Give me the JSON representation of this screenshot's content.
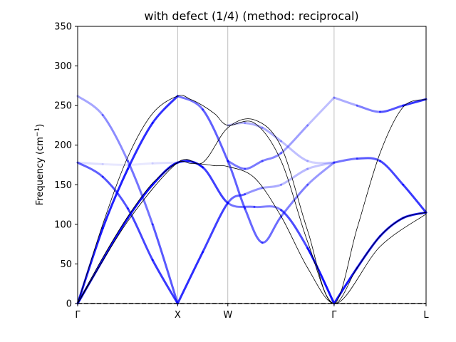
{
  "chart_data": {
    "type": "line",
    "title": "with defect (1/4) (method: reciprocal)",
    "ylabel_text": "Frequency (cm",
    "ylabel_sup": "−1",
    "ylabel_close": ")",
    "xlabel": "",
    "ylim": [
      0,
      350
    ],
    "yticks": [
      0,
      50,
      100,
      150,
      200,
      250,
      300,
      350
    ],
    "xlim": [
      0,
      1
    ],
    "high_symmetry_points": [
      {
        "label": "Γ",
        "x": 0.0
      },
      {
        "label": "X",
        "x": 0.287
      },
      {
        "label": "W",
        "x": 0.431
      },
      {
        "label": "Γ",
        "x": 0.736
      },
      {
        "label": "L",
        "x": 1.0
      }
    ],
    "zero_line": {
      "y": 0,
      "style": "dashed"
    },
    "colors": {
      "unfolded": "#0000ff",
      "reference": "#000000"
    },
    "reference_bands": [
      {
        "name": "",
        "x": [
          0,
          0.072,
          0.144,
          0.215,
          0.287,
          0.323,
          0.359,
          0.395,
          0.431,
          0.507,
          0.584,
          0.66,
          0.736,
          0.802,
          0.868,
          0.934,
          1.0
        ],
        "y": [
          0,
          58,
          110,
          152,
          178,
          177,
          176,
          174,
          173,
          159,
          110,
          45,
          0,
          45,
          85,
          108,
          115
        ]
      },
      {
        "name": "",
        "x": [
          0,
          0.072,
          0.144,
          0.215,
          0.287,
          0.323,
          0.359,
          0.395,
          0.431,
          0.507,
          0.584,
          0.66,
          0.736,
          0.802,
          0.868,
          0.934,
          1.0
        ],
        "y": [
          0,
          100,
          185,
          240,
          262,
          258,
          250,
          239,
          225,
          228,
          180,
          78,
          0,
          95,
          190,
          248,
          258
        ]
      },
      {
        "name": "",
        "x": [
          0,
          0.144,
          0.287,
          0.359,
          0.431,
          0.507,
          0.584,
          0.66,
          0.736,
          0.868,
          1.0
        ],
        "y": [
          0,
          104,
          178,
          178,
          222,
          232,
          198,
          92,
          0,
          72,
          113
        ]
      }
    ],
    "unfolded_bands": [
      {
        "name": "",
        "x": [
          0,
          0.072,
          0.144,
          0.215,
          0.287,
          0.359,
          0.431,
          0.507,
          0.584,
          0.66,
          0.736
        ],
        "y": [
          0,
          55,
          108,
          150,
          178,
          172,
          127,
          122,
          118,
          70,
          0
        ],
        "weight": [
          0.95,
          0.95,
          0.95,
          0.95,
          0.95,
          0.9,
          0.6,
          0.5,
          0.5,
          0.9,
          0.95
        ]
      },
      {
        "name": "",
        "x": [
          0,
          0.072,
          0.144,
          0.215,
          0.287
        ],
        "y": [
          0,
          95,
          170,
          228,
          262
        ],
        "weight": [
          0.9,
          0.9,
          0.85,
          0.8,
          0.8
        ]
      },
      {
        "name": "",
        "x": [
          0,
          0.072,
          0.144,
          0.215,
          0.287
        ],
        "y": [
          178,
          160,
          120,
          55,
          0
        ],
        "weight": [
          0.6,
          0.65,
          0.7,
          0.75,
          0.8
        ]
      },
      {
        "name": "",
        "x": [
          0,
          0.072,
          0.144,
          0.215,
          0.287
        ],
        "y": [
          262,
          238,
          180,
          100,
          0
        ],
        "weight": [
          0.3,
          0.4,
          0.5,
          0.6,
          0.7
        ]
      },
      {
        "name": "",
        "x": [
          0.287,
          0.359,
          0.431,
          0.48,
          0.53,
          0.584,
          0.66,
          0.736
        ],
        "y": [
          262,
          245,
          180,
          120,
          77,
          110,
          150,
          178
        ],
        "weight": [
          0.5,
          0.6,
          0.65,
          0.6,
          0.6,
          0.55,
          0.45,
          0.35
        ]
      },
      {
        "name": "",
        "x": [
          0.287,
          0.359,
          0.431,
          0.48,
          0.53,
          0.584,
          0.66,
          0.736
        ],
        "y": [
          0,
          65,
          127,
          138,
          146,
          150,
          170,
          178
        ],
        "weight": [
          0.85,
          0.8,
          0.7,
          0.5,
          0.35,
          0.3,
          0.25,
          0.2
        ]
      },
      {
        "name": "",
        "x": [
          0.431,
          0.48,
          0.53,
          0.584,
          0.66,
          0.736
        ],
        "y": [
          180,
          170,
          180,
          190,
          225,
          260
        ],
        "weight": [
          0.5,
          0.55,
          0.5,
          0.45,
          0.3,
          0.2
        ]
      },
      {
        "name": "",
        "x": [
          0.431,
          0.48,
          0.53,
          0.584,
          0.66,
          0.736
        ],
        "y": [
          225,
          228,
          222,
          205,
          180,
          178
        ],
        "weight": [
          0.2,
          0.3,
          0.35,
          0.3,
          0.2,
          0.15
        ]
      },
      {
        "name": "",
        "x": [
          0.736,
          0.802,
          0.868,
          0.934,
          1.0
        ],
        "y": [
          0,
          45,
          85,
          108,
          115
        ],
        "weight": [
          0.95,
          0.9,
          0.9,
          0.9,
          0.9
        ]
      },
      {
        "name": "",
        "x": [
          0.736,
          0.802,
          0.868,
          0.934,
          1.0
        ],
        "y": [
          178,
          183,
          180,
          150,
          115
        ],
        "weight": [
          0.5,
          0.6,
          0.7,
          0.75,
          0.8
        ]
      },
      {
        "name": "",
        "x": [
          0.736,
          0.802,
          0.868,
          0.934,
          1.0
        ],
        "y": [
          260,
          250,
          242,
          250,
          258
        ],
        "weight": [
          0.25,
          0.4,
          0.6,
          0.75,
          0.85
        ]
      },
      {
        "name": "",
        "x": [
          0,
          0.072,
          0.144,
          0.215,
          0.287
        ],
        "y": [
          178,
          176,
          175,
          177,
          178
        ],
        "weight": [
          0.15,
          0.1,
          0.08,
          0.1,
          0.15
        ]
      }
    ]
  }
}
